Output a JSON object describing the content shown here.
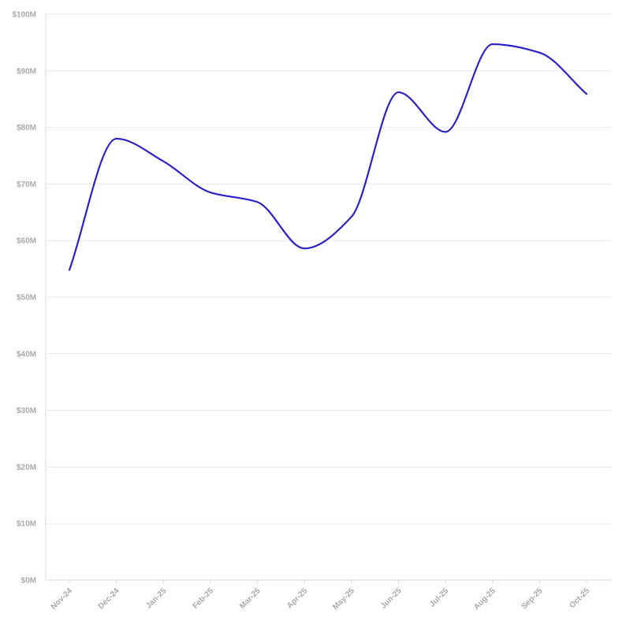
{
  "chart_data": {
    "type": "line",
    "title": "",
    "xlabel": "",
    "ylabel": "",
    "categories": [
      "Nov-24",
      "Dec-24",
      "Jan-25",
      "Feb-25",
      "Mar-25",
      "Apr-25",
      "May-25",
      "Jun-25",
      "Jul-25",
      "Aug-25",
      "Sep-25",
      "Oct-25"
    ],
    "series": [
      {
        "name": "",
        "color": "#2b20c9",
        "values": [
          54.8,
          78.0,
          74.0,
          68.5,
          66.8,
          58.6,
          64.2,
          86.2,
          79.2,
          94.7,
          93.2,
          85.9
        ]
      }
    ],
    "ylim": [
      0,
      100
    ],
    "yticks": [
      0,
      10,
      20,
      30,
      40,
      50,
      60,
      70,
      80,
      90,
      100
    ],
    "ytick_labels": [
      "$0M",
      "$10M",
      "$20M",
      "$30M",
      "$40M",
      "$50M",
      "$60M",
      "$70M",
      "$80M",
      "$90M",
      "$100M"
    ],
    "grid": true,
    "legend": "none"
  }
}
